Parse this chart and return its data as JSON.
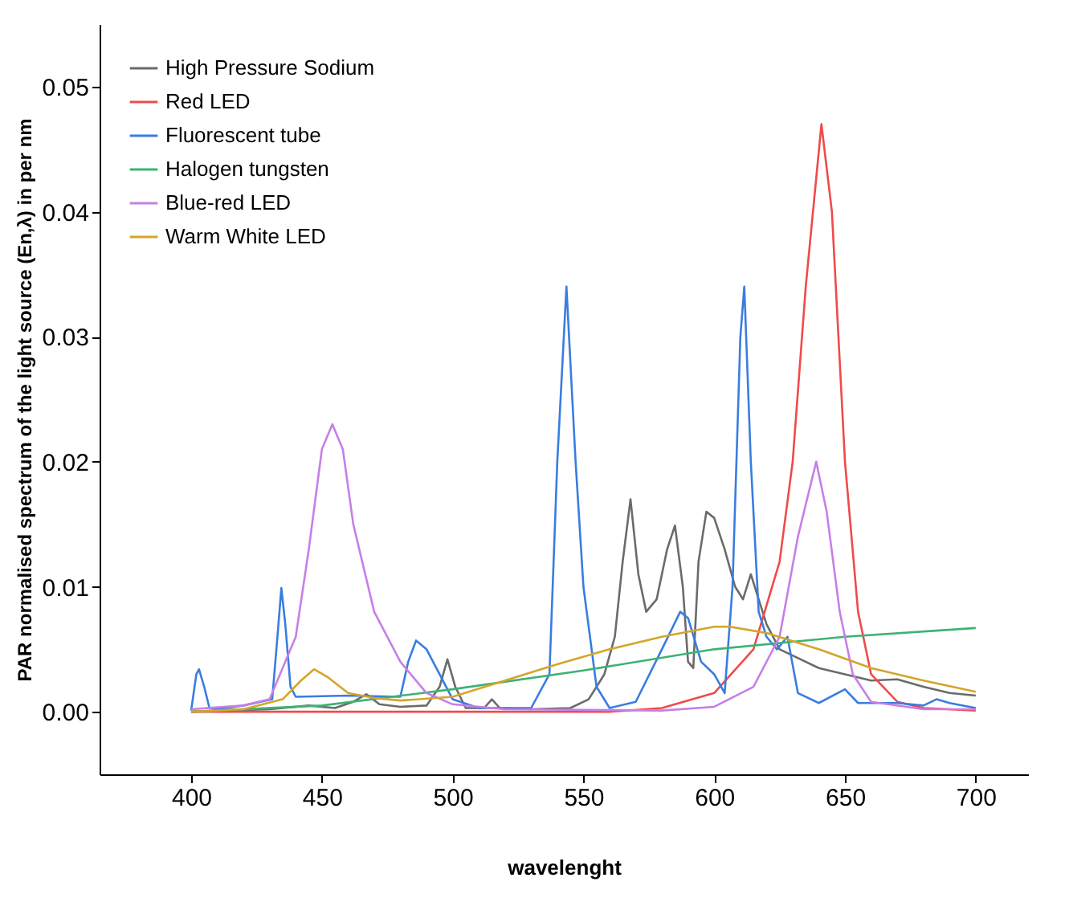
{
  "chart_data": {
    "type": "line",
    "xlabel": "wavelenght",
    "ylabel": "PAR normalised spectrum of the light source (En,λ) in per nm",
    "xlim": [
      365,
      720
    ],
    "xticks": [
      400,
      450,
      500,
      550,
      600,
      650,
      700
    ],
    "ylim": [
      -0.005,
      0.055
    ],
    "yticks": [
      {
        "value": 0,
        "label": "0.00"
      },
      {
        "value": 0.01,
        "label": "0.01"
      },
      {
        "value": 0.02,
        "label": "0.02"
      },
      {
        "value": 0.03,
        "label": "0.03"
      },
      {
        "value": 0.04,
        "label": "0.04"
      },
      {
        "value": 0.05,
        "label": "0.05"
      }
    ],
    "grid": false,
    "legend": "top left",
    "marker": "none",
    "line_style": "solid",
    "series": [
      {
        "name": "High Pressure Sodium",
        "color": "#6b6b6b",
        "x": [
          400,
          430,
          445,
          455,
          462,
          467,
          472,
          480,
          490,
          495,
          498,
          501,
          505,
          512,
          515,
          518,
          530,
          545,
          552,
          558,
          562,
          565,
          568,
          571,
          574,
          578,
          582,
          585,
          588,
          590,
          592,
          594,
          597,
          600,
          604,
          608,
          611,
          614,
          617,
          620,
          625,
          630,
          640,
          650,
          660,
          670,
          680,
          690,
          700
        ],
        "values": [
          0,
          0.0002,
          0.0005,
          0.0003,
          0.0008,
          0.0014,
          0.0006,
          0.0004,
          0.0005,
          0.002,
          0.0042,
          0.002,
          0.0003,
          0.0003,
          0.001,
          0.0003,
          0.0002,
          0.0003,
          0.001,
          0.003,
          0.006,
          0.012,
          0.017,
          0.011,
          0.008,
          0.009,
          0.013,
          0.0149,
          0.01,
          0.004,
          0.0035,
          0.012,
          0.016,
          0.0155,
          0.013,
          0.01,
          0.009,
          0.011,
          0.009,
          0.007,
          0.005,
          0.0045,
          0.0035,
          0.003,
          0.0025,
          0.0026,
          0.002,
          0.0015,
          0.0013
        ]
      },
      {
        "name": "Red LED",
        "color": "#f04a4a",
        "x": [
          400,
          500,
          560,
          580,
          600,
          615,
          625,
          630,
          635,
          641,
          645,
          650,
          655,
          660,
          670,
          680,
          700
        ],
        "values": [
          0,
          0,
          0,
          0.0003,
          0.0015,
          0.005,
          0.012,
          0.02,
          0.034,
          0.047,
          0.04,
          0.02,
          0.008,
          0.003,
          0.0008,
          0.0003,
          0.0001
        ]
      },
      {
        "name": "Fluorescent tube",
        "color": "#3a7de0",
        "x": [
          400,
          402,
          403,
          405,
          407,
          410,
          420,
          431,
          433,
          434.5,
          436,
          438,
          440,
          460,
          480,
          483,
          486,
          490,
          495,
          500,
          510,
          530,
          537,
          540,
          543.5,
          547,
          550,
          555,
          560,
          570,
          580,
          587,
          590,
          595,
          600,
          604,
          607,
          610,
          611.5,
          614,
          617,
          620,
          624,
          628,
          632,
          640,
          650,
          655,
          670,
          680,
          685,
          690,
          700
        ],
        "values": [
          0.0001,
          0.003,
          0.0034,
          0.002,
          0.0003,
          0.0002,
          0.0005,
          0.001,
          0.006,
          0.0099,
          0.007,
          0.002,
          0.0012,
          0.0013,
          0.0012,
          0.004,
          0.0057,
          0.005,
          0.003,
          0.001,
          0.0003,
          0.0003,
          0.003,
          0.02,
          0.034,
          0.02,
          0.01,
          0.002,
          0.0003,
          0.0008,
          0.005,
          0.008,
          0.0075,
          0.004,
          0.003,
          0.0015,
          0.01,
          0.03,
          0.034,
          0.02,
          0.008,
          0.006,
          0.005,
          0.006,
          0.0015,
          0.0007,
          0.0018,
          0.0007,
          0.0007,
          0.0005,
          0.001,
          0.0007,
          0.0003
        ]
      },
      {
        "name": "Halogen tungsten",
        "color": "#3cb371",
        "x": [
          400,
          450,
          500,
          550,
          600,
          650,
          700
        ],
        "values": [
          0,
          0.0005,
          0.0018,
          0.0033,
          0.005,
          0.006,
          0.0067
        ]
      },
      {
        "name": "Blue-red LED",
        "color": "#c77fe8",
        "x": [
          400,
          420,
          430,
          440,
          445,
          450,
          454,
          458,
          462,
          470,
          480,
          490,
          500,
          520,
          580,
          600,
          615,
          625,
          632,
          639,
          643,
          648,
          653,
          660,
          680,
          700
        ],
        "values": [
          0.0002,
          0.0005,
          0.001,
          0.006,
          0.013,
          0.021,
          0.023,
          0.021,
          0.015,
          0.008,
          0.004,
          0.0015,
          0.0006,
          0.0002,
          0.0001,
          0.0004,
          0.002,
          0.006,
          0.014,
          0.02,
          0.016,
          0.008,
          0.003,
          0.0008,
          0.0002,
          0.0002
        ]
      },
      {
        "name": "Warm White LED",
        "color": "#d4a52a",
        "x": [
          400,
          420,
          435,
          442,
          447,
          452,
          460,
          470,
          480,
          500,
          520,
          540,
          560,
          580,
          600,
          606,
          620,
          640,
          660,
          680,
          700
        ],
        "values": [
          0,
          0.0002,
          0.001,
          0.0025,
          0.0034,
          0.0028,
          0.0015,
          0.0011,
          0.0009,
          0.0012,
          0.0025,
          0.0038,
          0.005,
          0.006,
          0.0068,
          0.0068,
          0.0063,
          0.005,
          0.0035,
          0.0025,
          0.0016
        ]
      }
    ]
  }
}
